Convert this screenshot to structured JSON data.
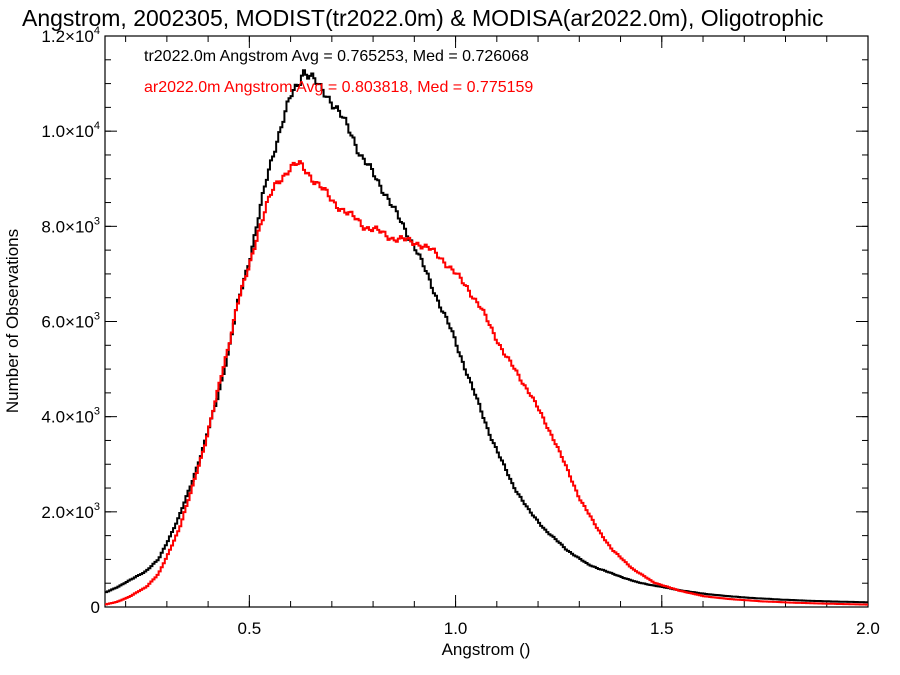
{
  "chart_data": {
    "type": "line",
    "title": "Angstrom, 2002305, MODIST(tr2022.0m) & MODISA(ar2022.0m), Oligotrophic",
    "xlabel": "Angstrom ()",
    "ylabel": "Number of Observations",
    "xlim": [
      0.15,
      2.0
    ],
    "ylim": [
      0,
      12000
    ],
    "x_ticks": [
      {
        "value": 0.5,
        "label": "0.5"
      },
      {
        "value": 1.0,
        "label": "1.0"
      },
      {
        "value": 1.5,
        "label": "1.5"
      },
      {
        "value": 2.0,
        "label": "2.0"
      }
    ],
    "y_ticks": [
      {
        "value": 0,
        "label": "0",
        "exp": ""
      },
      {
        "value": 2000,
        "label": "2.0×10",
        "exp": "3"
      },
      {
        "value": 4000,
        "label": "4.0×10",
        "exp": "3"
      },
      {
        "value": 6000,
        "label": "6.0×10",
        "exp": "3"
      },
      {
        "value": 8000,
        "label": "8.0×10",
        "exp": "3"
      },
      {
        "value": 10000,
        "label": "1.0×10",
        "exp": "4"
      },
      {
        "value": 12000,
        "label": "1.2×10",
        "exp": "4"
      }
    ],
    "legend_placement": "top-left",
    "series": [
      {
        "name": "tr2022.0m Angstrom Avg = 0.765253, Med = 0.726068",
        "color": "#000000",
        "step": "histogram",
        "points": [
          [
            0.15,
            300
          ],
          [
            0.18,
            420
          ],
          [
            0.21,
            560
          ],
          [
            0.25,
            760
          ],
          [
            0.28,
            1000
          ],
          [
            0.3,
            1350
          ],
          [
            0.33,
            1900
          ],
          [
            0.36,
            2600
          ],
          [
            0.39,
            3400
          ],
          [
            0.42,
            4300
          ],
          [
            0.45,
            5400
          ],
          [
            0.47,
            6300
          ],
          [
            0.5,
            7300
          ],
          [
            0.52,
            8100
          ],
          [
            0.54,
            8900
          ],
          [
            0.56,
            9600
          ],
          [
            0.58,
            10200
          ],
          [
            0.6,
            10700
          ],
          [
            0.62,
            11000
          ],
          [
            0.63,
            11300
          ],
          [
            0.65,
            11150
          ],
          [
            0.67,
            10900
          ],
          [
            0.69,
            10750
          ],
          [
            0.71,
            10500
          ],
          [
            0.73,
            10200
          ],
          [
            0.75,
            9900
          ],
          [
            0.77,
            9500
          ],
          [
            0.8,
            9100
          ],
          [
            0.83,
            8700
          ],
          [
            0.86,
            8200
          ],
          [
            0.9,
            7600
          ],
          [
            0.93,
            7000
          ],
          [
            0.96,
            6400
          ],
          [
            0.99,
            5800
          ],
          [
            1.02,
            5100
          ],
          [
            1.05,
            4400
          ],
          [
            1.08,
            3700
          ],
          [
            1.11,
            3100
          ],
          [
            1.14,
            2550
          ],
          [
            1.18,
            2000
          ],
          [
            1.22,
            1600
          ],
          [
            1.27,
            1200
          ],
          [
            1.32,
            900
          ],
          [
            1.38,
            700
          ],
          [
            1.44,
            520
          ],
          [
            1.5,
            420
          ],
          [
            1.56,
            330
          ],
          [
            1.62,
            260
          ],
          [
            1.7,
            200
          ],
          [
            1.78,
            160
          ],
          [
            1.86,
            130
          ],
          [
            1.94,
            110
          ],
          [
            2.0,
            100
          ]
        ]
      },
      {
        "name": "ar2022.0m Angstrom Avg = 0.803818, Med = 0.775159",
        "color": "#ff0000",
        "step": "histogram",
        "points": [
          [
            0.15,
            50
          ],
          [
            0.18,
            110
          ],
          [
            0.21,
            220
          ],
          [
            0.25,
            420
          ],
          [
            0.28,
            700
          ],
          [
            0.3,
            1050
          ],
          [
            0.33,
            1650
          ],
          [
            0.36,
            2450
          ],
          [
            0.39,
            3350
          ],
          [
            0.42,
            4400
          ],
          [
            0.45,
            5500
          ],
          [
            0.47,
            6350
          ],
          [
            0.5,
            7150
          ],
          [
            0.52,
            7850
          ],
          [
            0.54,
            8400
          ],
          [
            0.56,
            8800
          ],
          [
            0.58,
            9050
          ],
          [
            0.6,
            9250
          ],
          [
            0.62,
            9300
          ],
          [
            0.64,
            9150
          ],
          [
            0.66,
            8950
          ],
          [
            0.68,
            8750
          ],
          [
            0.7,
            8550
          ],
          [
            0.72,
            8400
          ],
          [
            0.74,
            8250
          ],
          [
            0.76,
            8150
          ],
          [
            0.78,
            8000
          ],
          [
            0.81,
            7900
          ],
          [
            0.85,
            7750
          ],
          [
            0.88,
            7700
          ],
          [
            0.91,
            7650
          ],
          [
            0.94,
            7500
          ],
          [
            0.97,
            7300
          ],
          [
            1.0,
            7000
          ],
          [
            1.03,
            6700
          ],
          [
            1.06,
            6300
          ],
          [
            1.09,
            5800
          ],
          [
            1.12,
            5300
          ],
          [
            1.15,
            4900
          ],
          [
            1.18,
            4500
          ],
          [
            1.21,
            4000
          ],
          [
            1.24,
            3500
          ],
          [
            1.27,
            2900
          ],
          [
            1.3,
            2300
          ],
          [
            1.34,
            1700
          ],
          [
            1.38,
            1200
          ],
          [
            1.43,
            800
          ],
          [
            1.48,
            520
          ],
          [
            1.54,
            350
          ],
          [
            1.6,
            230
          ],
          [
            1.66,
            170
          ],
          [
            1.74,
            120
          ],
          [
            1.82,
            90
          ],
          [
            1.9,
            70
          ],
          [
            2.0,
            50
          ]
        ]
      }
    ]
  }
}
